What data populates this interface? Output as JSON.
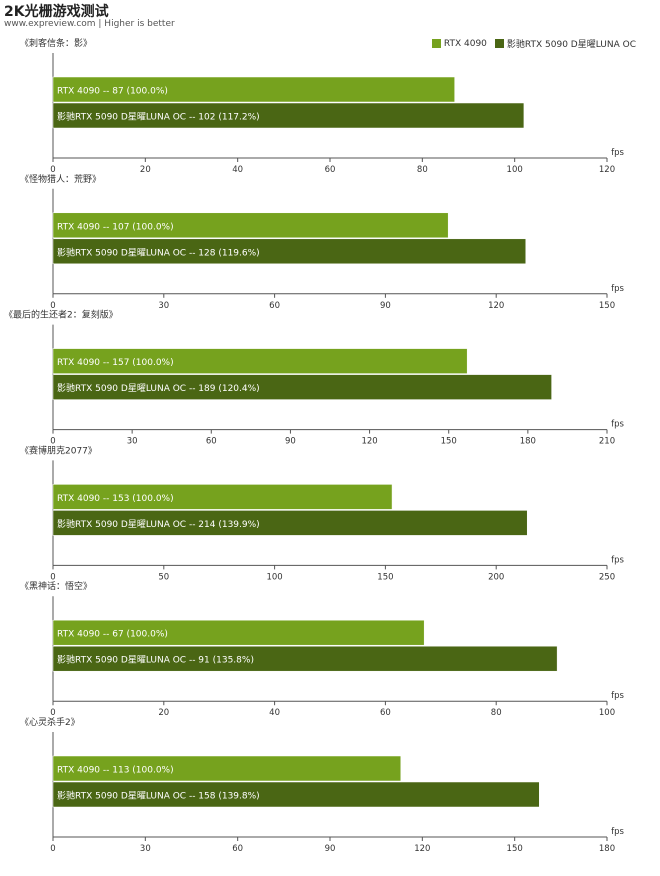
{
  "header": {
    "title": "2K光栅游戏测试",
    "subtitle": "www.expreview.com | Higher is better"
  },
  "legend": [
    {
      "name": "RTX 4090",
      "color": "#76a21e"
    },
    {
      "name": "影驰RTX 5090 D星曜LUNA OC",
      "color": "#4a6614"
    }
  ],
  "unit": "fps",
  "chart_data": [
    {
      "type": "bar",
      "title": "《刺客信条：影》",
      "categories": [
        "RTX 4090",
        "影驰RTX 5090 D星曜LUNA OC"
      ],
      "values": [
        87,
        102
      ],
      "data_labels": [
        "RTX 4090  --  87  (100.0%)",
        "影驰RTX 5090 D星曜LUNA OC  --  102  (117.2%)"
      ],
      "xlim": [
        0,
        120
      ],
      "ticks": [
        "0",
        "20",
        "40",
        "60",
        "80",
        "100",
        "120"
      ]
    },
    {
      "type": "bar",
      "title": "《怪物猎人：荒野》",
      "categories": [
        "RTX 4090",
        "影驰RTX 5090 D星曜LUNA OC"
      ],
      "values": [
        107,
        128
      ],
      "data_labels": [
        "RTX 4090  --  107  (100.0%)",
        "影驰RTX 5090 D星曜LUNA OC  --  128  (119.6%)"
      ],
      "xlim": [
        0,
        150
      ],
      "ticks": [
        "0",
        "30",
        "60",
        "90",
        "120",
        "150"
      ]
    },
    {
      "type": "bar",
      "title": "《最后的生还者2：复刻版》",
      "categories": [
        "RTX 4090",
        "影驰RTX 5090 D星曜LUNA OC"
      ],
      "values": [
        157,
        189
      ],
      "data_labels": [
        "RTX 4090  --  157  (100.0%)",
        "影驰RTX 5090 D星曜LUNA OC  --  189  (120.4%)"
      ],
      "xlim": [
        0,
        210
      ],
      "ticks": [
        "0",
        "30",
        "60",
        "90",
        "120",
        "150",
        "180",
        "210"
      ]
    },
    {
      "type": "bar",
      "title": "《赛博朋克2077》",
      "categories": [
        "RTX 4090",
        "影驰RTX 5090 D星曜LUNA OC"
      ],
      "values": [
        153,
        214
      ],
      "data_labels": [
        "RTX 4090  --  153  (100.0%)",
        "影驰RTX 5090 D星曜LUNA OC  --  214  (139.9%)"
      ],
      "xlim": [
        0,
        250
      ],
      "ticks": [
        "0",
        "50",
        "100",
        "150",
        "200",
        "250"
      ]
    },
    {
      "type": "bar",
      "title": "《黑神话：悟空》",
      "categories": [
        "RTX 4090",
        "影驰RTX 5090 D星曜LUNA OC"
      ],
      "values": [
        67,
        91
      ],
      "data_labels": [
        "RTX 4090  --  67  (100.0%)",
        "影驰RTX 5090 D星曜LUNA OC  --  91  (135.8%)"
      ],
      "xlim": [
        0,
        100
      ],
      "ticks": [
        "0",
        "20",
        "40",
        "60",
        "80",
        "100"
      ]
    },
    {
      "type": "bar",
      "title": "《心灵杀手2》",
      "categories": [
        "RTX 4090",
        "影驰RTX 5090 D星曜LUNA OC"
      ],
      "values": [
        113,
        158
      ],
      "data_labels": [
        "RTX 4090  --  113  (100.0%)",
        "影驰RTX 5090 D星曜LUNA OC  --  158  (139.8%)"
      ],
      "xlim": [
        0,
        180
      ],
      "ticks": [
        "0",
        "30",
        "60",
        "90",
        "120",
        "150",
        "180"
      ]
    }
  ]
}
